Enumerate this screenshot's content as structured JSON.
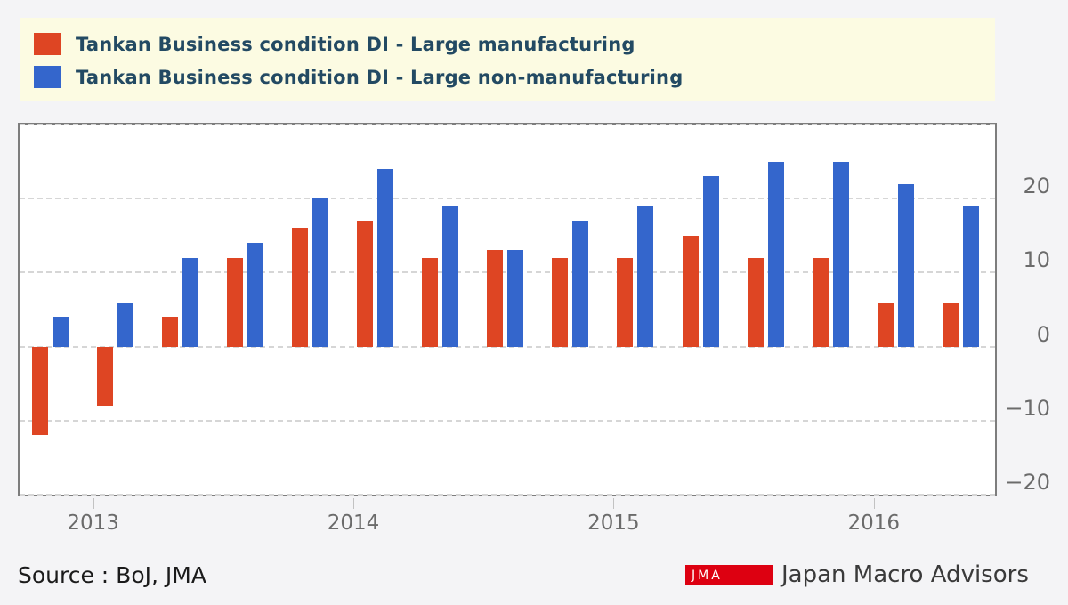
{
  "page": {
    "background": "#f4f4f6"
  },
  "legend": {
    "background": "#fcfbe2",
    "text_color": "#234a63",
    "items": [
      {
        "label": "Tankan Business condition DI - Large manufacturing",
        "color": "#de4523"
      },
      {
        "label": "Tankan Business condition DI - Large non-manufacturing",
        "color": "#3466cc"
      }
    ]
  },
  "chart_data": {
    "type": "bar",
    "categories": [
      "2012 Q4",
      "2013 Q1",
      "2013 Q2",
      "2013 Q3",
      "2013 Q4",
      "2014 Q1",
      "2014 Q2",
      "2014 Q3",
      "2014 Q4",
      "2015 Q1",
      "2015 Q2",
      "2015 Q3",
      "2015 Q4",
      "2016 Q1",
      "2016 Q2"
    ],
    "series": [
      {
        "name": "Tankan Business condition DI - Large manufacturing",
        "color": "#de4523",
        "values": [
          -12,
          -8,
          4,
          12,
          16,
          17,
          12,
          13,
          12,
          12,
          15,
          12,
          12,
          6,
          6
        ]
      },
      {
        "name": "Tankan Business condition DI - Large non-manufacturing",
        "color": "#3466cc",
        "values": [
          4,
          6,
          12,
          14,
          20,
          24,
          19,
          13,
          17,
          19,
          23,
          25,
          25,
          22,
          19
        ]
      }
    ],
    "title": "",
    "xlabel": "",
    "ylabel": "",
    "ylim": [
      -20,
      30
    ],
    "y_ticks": [
      20,
      10,
      0,
      -10,
      -20
    ],
    "y_gridlines": [
      30,
      20,
      10,
      0,
      -10,
      -20
    ],
    "grid": "horizontal-dashed",
    "y_axis_side": "right",
    "legend_position": "top",
    "year_ticks": [
      {
        "label": "2013",
        "quarter_index": 1
      },
      {
        "label": "2014",
        "quarter_index": 5
      },
      {
        "label": "2015",
        "quarter_index": 9
      },
      {
        "label": "2016",
        "quarter_index": 13
      }
    ]
  },
  "footer": {
    "source_text": "Source : BoJ, JMA",
    "logo_badge": "JMA",
    "logo_badge_color": "#dd0011",
    "logo_text": "Japan Macro Advisors"
  }
}
